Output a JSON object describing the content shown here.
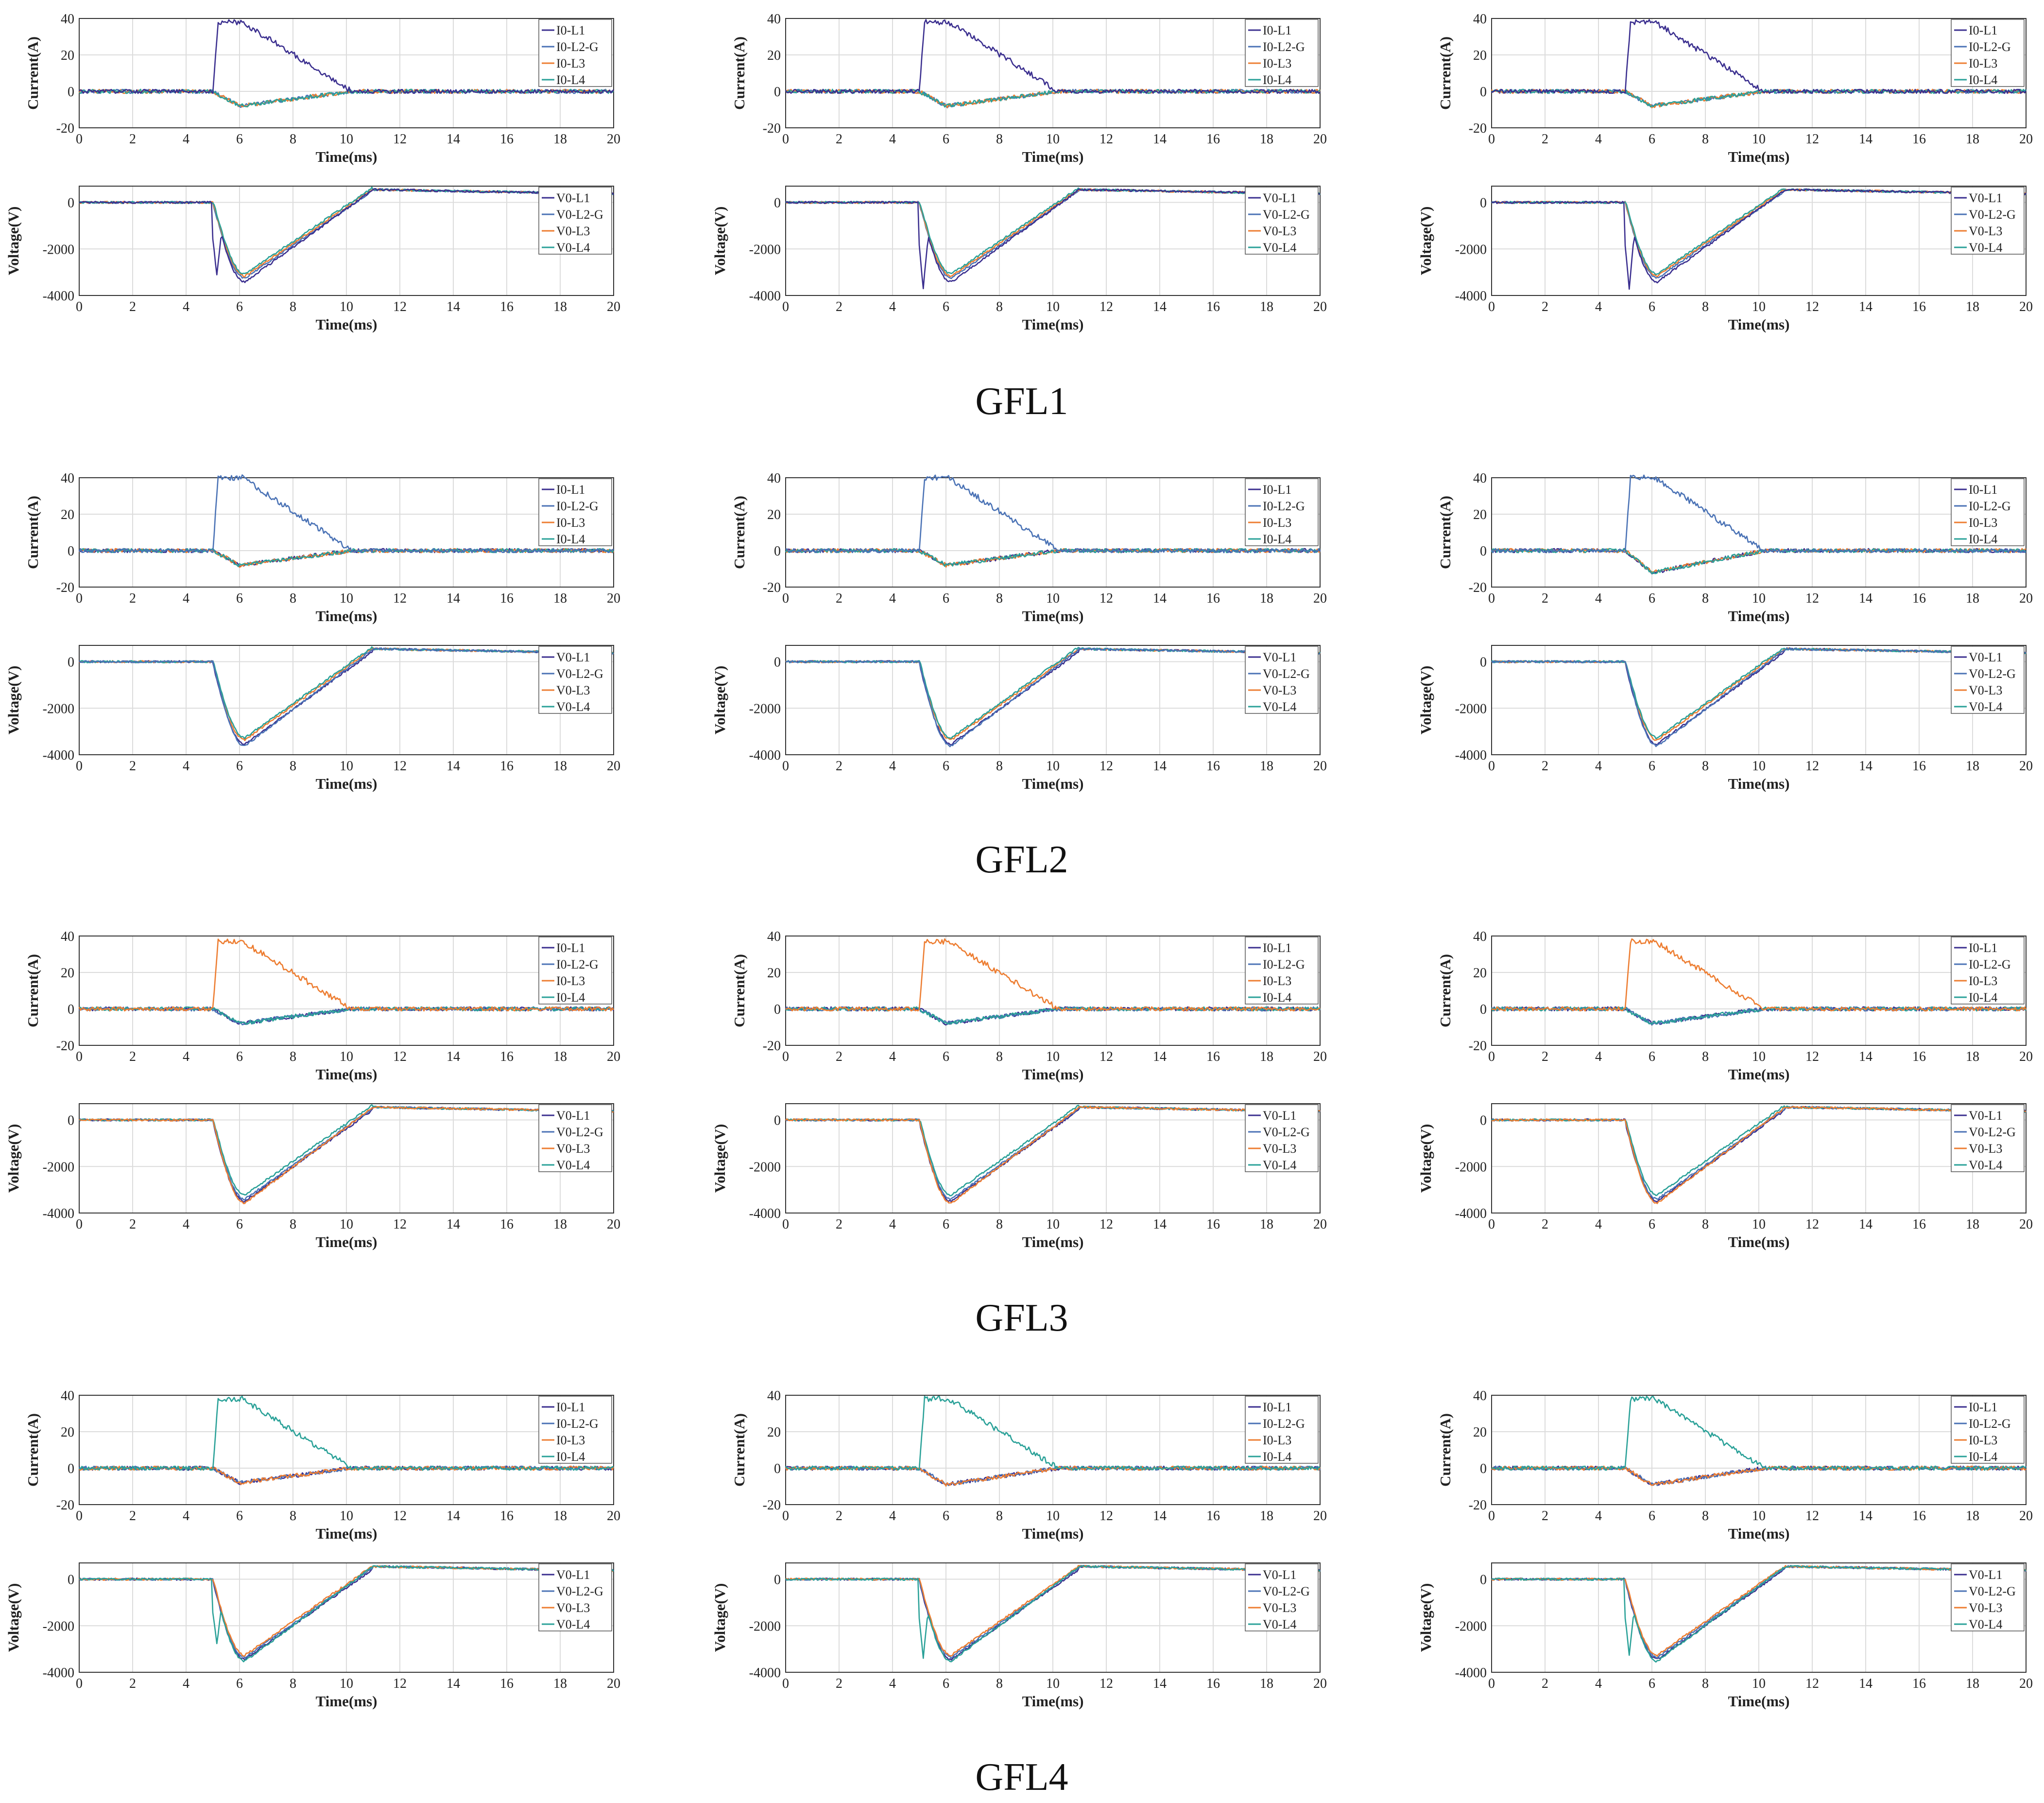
{
  "series_colors": {
    "L1": "#3b2f8f",
    "L2": "#4a72b5",
    "L3": "#ed7d31",
    "L4": "#2aa198"
  },
  "grid_color": "#dcdcdc",
  "current_axis": {
    "ylabel": "Current(A)",
    "xlabel": "Time(ms)",
    "ylim": [
      -20,
      40
    ],
    "yticks": [
      -20,
      0,
      20,
      40
    ],
    "xlim": [
      0,
      20
    ],
    "xticks": [
      0,
      2,
      4,
      6,
      8,
      10,
      12,
      14,
      16,
      18,
      20
    ]
  },
  "voltage_axis": {
    "ylabel": "Voltage(V)",
    "xlabel": "Time(ms)",
    "ylim": [
      -4000,
      700
    ],
    "yticks": [
      -4000,
      -2000,
      0
    ],
    "xlim": [
      0,
      20
    ],
    "xticks": [
      0,
      2,
      4,
      6,
      8,
      10,
      12,
      14,
      16,
      18,
      20
    ]
  },
  "current_legend": [
    "I0-L1",
    "I0-L2-G",
    "I0-L3",
    "I0-L4"
  ],
  "voltage_legend": [
    "V0-L1",
    "V0-L2-G",
    "V0-L3",
    "V0-L4"
  ],
  "chart_data": [
    {
      "type": "line",
      "group": "GFL1",
      "fault_line": "L1",
      "fault_time_ms": 5.0,
      "clear_time_ms": 10.2,
      "current_peak_A": 38,
      "current_healthy_min_A": -8,
      "voltage_min_V": -3300,
      "voltage_spike_line": "L1",
      "voltage_spike_V": -3100,
      "voltage_final_V": 550
    },
    {
      "type": "line",
      "group": "GFL1",
      "fault_line": "L1",
      "fault_time_ms": 5.0,
      "clear_time_ms": 10.2,
      "current_peak_A": 38,
      "current_healthy_min_A": -8,
      "voltage_min_V": -3300,
      "voltage_spike_line": "L1",
      "voltage_spike_V": -3700,
      "voltage_final_V": 550
    },
    {
      "type": "line",
      "group": "GFL1",
      "fault_line": "L1",
      "fault_time_ms": 5.0,
      "clear_time_ms": 10.2,
      "current_peak_A": 38,
      "current_healthy_min_A": -8,
      "voltage_min_V": -3300,
      "voltage_spike_line": "L1",
      "voltage_spike_V": -3700,
      "voltage_final_V": 550
    },
    {
      "type": "line",
      "group": "GFL2",
      "fault_line": "L2",
      "fault_time_ms": 5.0,
      "clear_time_ms": 10.2,
      "current_peak_A": 40,
      "current_healthy_min_A": -8,
      "voltage_min_V": -3500,
      "voltage_spike_line": "",
      "voltage_spike_V": 0,
      "voltage_final_V": 550
    },
    {
      "type": "line",
      "group": "GFL2",
      "fault_line": "L2",
      "fault_time_ms": 5.0,
      "clear_time_ms": 10.2,
      "current_peak_A": 40,
      "current_healthy_min_A": -8,
      "voltage_min_V": -3500,
      "voltage_spike_line": "",
      "voltage_spike_V": 0,
      "voltage_final_V": 550
    },
    {
      "type": "line",
      "group": "GFL2",
      "fault_line": "L2",
      "fault_time_ms": 5.0,
      "clear_time_ms": 10.2,
      "current_peak_A": 40,
      "current_healthy_min_A": -12,
      "voltage_min_V": -3500,
      "voltage_spike_line": "",
      "voltage_spike_V": 0,
      "voltage_final_V": 550
    },
    {
      "type": "line",
      "group": "GFL3",
      "fault_line": "L3",
      "fault_time_ms": 5.0,
      "clear_time_ms": 10.2,
      "current_peak_A": 37,
      "current_healthy_min_A": -8,
      "voltage_min_V": -3450,
      "voltage_spike_line": "",
      "voltage_spike_V": 0,
      "voltage_final_V": 550
    },
    {
      "type": "line",
      "group": "GFL3",
      "fault_line": "L3",
      "fault_time_ms": 5.0,
      "clear_time_ms": 10.2,
      "current_peak_A": 37,
      "current_healthy_min_A": -8,
      "voltage_min_V": -3450,
      "voltage_spike_line": "",
      "voltage_spike_V": 0,
      "voltage_final_V": 550
    },
    {
      "type": "line",
      "group": "GFL3",
      "fault_line": "L3",
      "fault_time_ms": 5.0,
      "clear_time_ms": 10.2,
      "current_peak_A": 37,
      "current_healthy_min_A": -8,
      "voltage_min_V": -3450,
      "voltage_spike_line": "",
      "voltage_spike_V": 0,
      "voltage_final_V": 550
    },
    {
      "type": "line",
      "group": "GFL4",
      "fault_line": "L4",
      "fault_time_ms": 5.0,
      "clear_time_ms": 10.2,
      "current_peak_A": 38,
      "current_healthy_min_A": -8,
      "voltage_min_V": -3400,
      "voltage_spike_line": "L4",
      "voltage_spike_V": -2800,
      "voltage_final_V": 550
    },
    {
      "type": "line",
      "group": "GFL4",
      "fault_line": "L4",
      "fault_time_ms": 5.0,
      "clear_time_ms": 10.2,
      "current_peak_A": 38,
      "current_healthy_min_A": -9,
      "voltage_min_V": -3400,
      "voltage_spike_line": "L4",
      "voltage_spike_V": -3400,
      "voltage_final_V": 550
    },
    {
      "type": "line",
      "group": "GFL4",
      "fault_line": "L4",
      "fault_time_ms": 5.0,
      "clear_time_ms": 10.2,
      "current_peak_A": 38,
      "current_healthy_min_A": -9,
      "voltage_min_V": -3400,
      "voltage_spike_line": "L4",
      "voltage_spike_V": -3300,
      "voltage_final_V": 550
    }
  ],
  "group_labels": [
    "GFL1",
    "GFL2",
    "GFL3",
    "GFL4"
  ]
}
